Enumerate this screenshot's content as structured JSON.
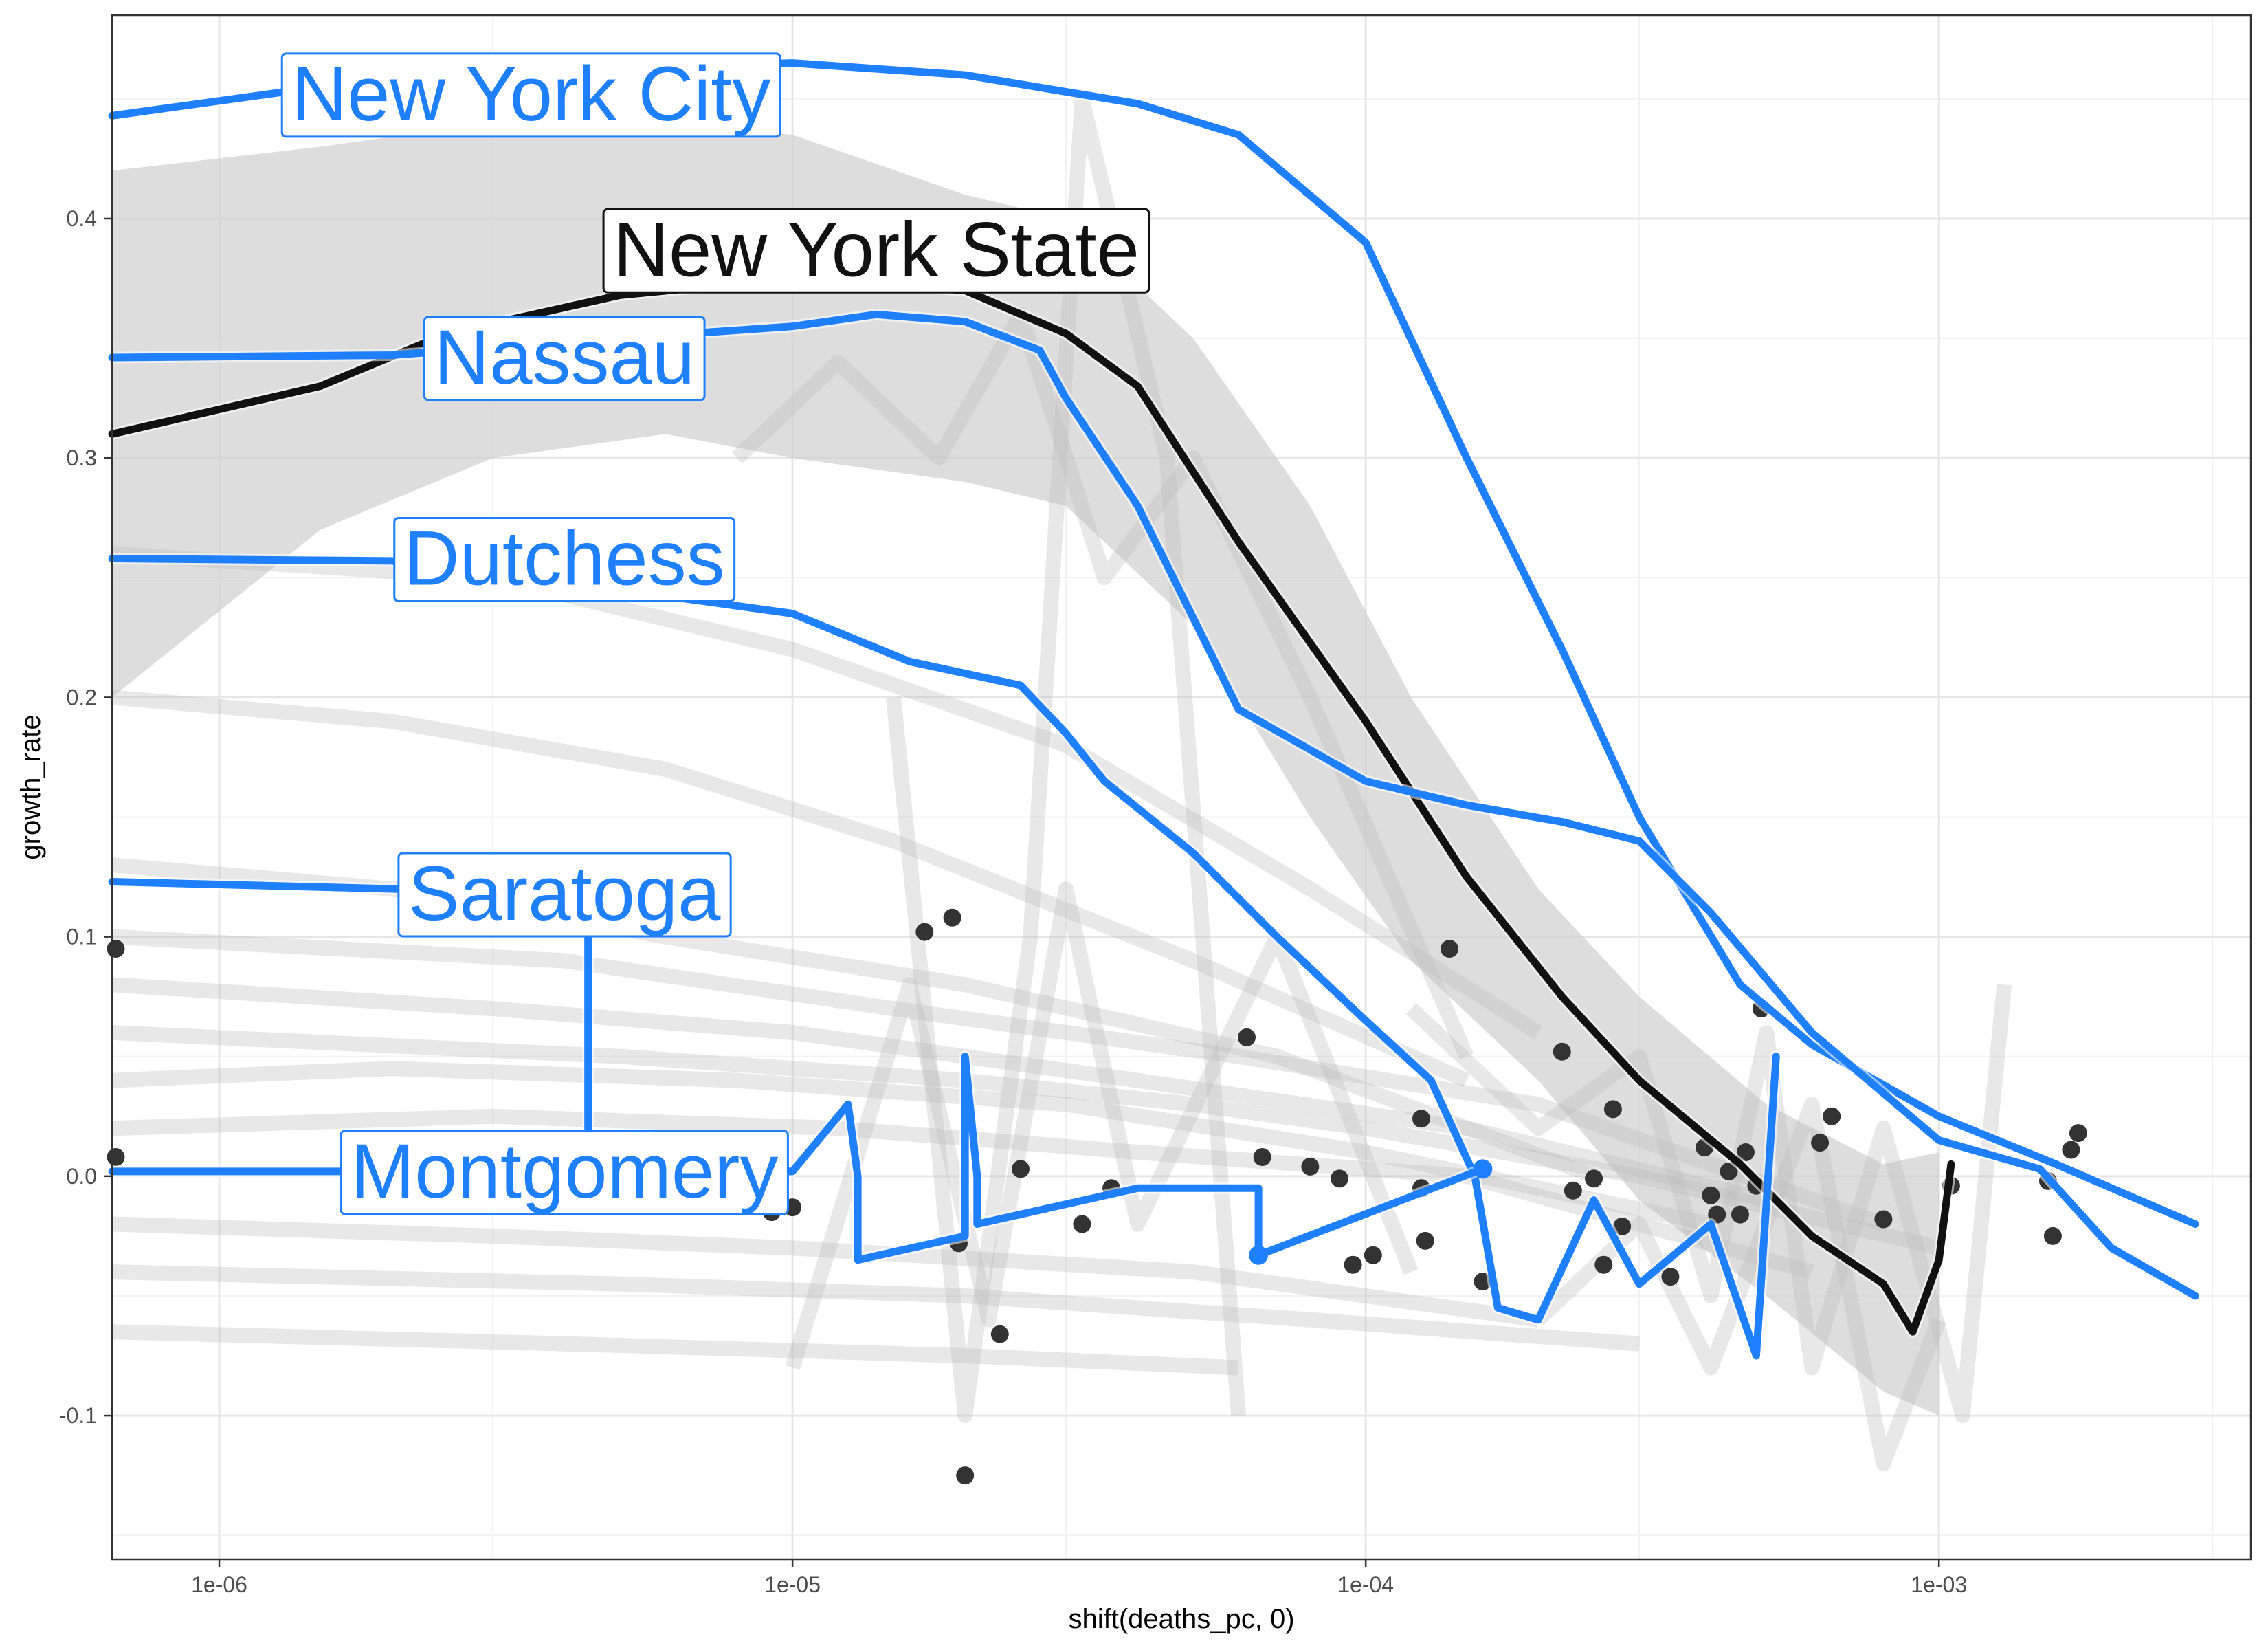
{
  "chart_data": {
    "type": "line",
    "xlabel": "shift(deaths_pc, 0)",
    "ylabel": "growth_rate",
    "x_scale": "log10",
    "xlim": [
      6.5e-07,
      0.0035
    ],
    "ylim": [
      -0.16,
      0.485
    ],
    "x_ticks": [
      {
        "value": 1e-06,
        "label": "1e-06"
      },
      {
        "value": 1e-05,
        "label": "1e-05"
      },
      {
        "value": 0.0001,
        "label": "1e-04"
      },
      {
        "value": 0.001,
        "label": "1e-03"
      }
    ],
    "y_ticks": [
      {
        "value": -0.1,
        "label": "-0.1"
      },
      {
        "value": 0.0,
        "label": "0.0"
      },
      {
        "value": 0.1,
        "label": "0.1"
      },
      {
        "value": 0.2,
        "label": "0.2"
      },
      {
        "value": 0.3,
        "label": "0.3"
      },
      {
        "value": 0.4,
        "label": "0.4"
      }
    ],
    "grid": true,
    "colors": {
      "highlight": "#1e7fff",
      "state": "#111111",
      "background_series": "#bdbdbd",
      "ribbon": "#cfcfcf",
      "points": "#333333"
    },
    "series": [
      {
        "name": "New York City",
        "color": "#1e7fff",
        "label_at": [
          3.5e-06,
          0.452
        ],
        "x": [
          6.5e-07,
          1.5e-06,
          4e-06,
          1e-05,
          2e-05,
          4e-05,
          6e-05,
          0.0001,
          0.00015,
          0.00022,
          0.0003,
          0.00045,
          0.0006,
          0.001,
          0.0016,
          0.0028
        ],
        "y": [
          0.443,
          0.455,
          0.462,
          0.465,
          0.46,
          0.448,
          0.435,
          0.39,
          0.3,
          0.22,
          0.15,
          0.08,
          0.055,
          0.025,
          0.005,
          -0.02
        ]
      },
      {
        "name": "New York State",
        "color": "#111111",
        "label_at": [
          1.4e-05,
          0.387
        ],
        "x": [
          6.5e-07,
          1.5e-06,
          2.5e-06,
          5e-06,
          1e-05,
          2e-05,
          3e-05,
          4e-05,
          6e-05,
          0.0001,
          0.00015,
          0.00022,
          0.0003,
          0.00045,
          0.0006,
          0.0008,
          0.0009,
          0.001,
          0.00105
        ],
        "y": [
          0.31,
          0.33,
          0.352,
          0.368,
          0.375,
          0.37,
          0.352,
          0.33,
          0.265,
          0.19,
          0.125,
          0.075,
          0.04,
          0.005,
          -0.025,
          -0.045,
          -0.065,
          -0.035,
          0.005
        ]
      },
      {
        "name": "Nassau",
        "color": "#1e7fff",
        "label_at": [
          4e-06,
          0.342
        ],
        "x": [
          6.5e-07,
          2e-06,
          5e-06,
          1e-05,
          1.4e-05,
          2e-05,
          2.7e-05,
          3e-05,
          4e-05,
          6e-05,
          0.0001,
          0.00015,
          0.00022,
          0.0003,
          0.0004,
          0.0006,
          0.001,
          0.0015,
          0.002,
          0.0028
        ],
        "y": [
          0.342,
          0.343,
          0.35,
          0.355,
          0.36,
          0.357,
          0.345,
          0.325,
          0.28,
          0.195,
          0.165,
          0.155,
          0.148,
          0.14,
          0.11,
          0.06,
          0.015,
          0.003,
          -0.03,
          -0.05
        ]
      },
      {
        "name": "Dutchess",
        "color": "#1e7fff",
        "label_at": [
          4e-06,
          0.258
        ],
        "x": [
          6.5e-07,
          2e-06,
          5e-06,
          1e-05,
          1.6e-05,
          2.5e-05,
          3e-05,
          3.5e-05,
          5e-05,
          7e-05,
          0.0001,
          0.00013,
          0.000155,
          0.00017,
          0.0002,
          0.00025,
          0.0003,
          0.0004,
          0.00048,
          0.00052
        ],
        "y": [
          0.258,
          0.257,
          0.245,
          0.235,
          0.215,
          0.205,
          0.185,
          0.165,
          0.135,
          0.1,
          0.065,
          0.04,
          0.0,
          -0.055,
          -0.06,
          -0.01,
          -0.045,
          -0.02,
          -0.075,
          0.05
        ]
      },
      {
        "name": "Saratoga",
        "color": "#1e7fff",
        "label_at": [
          4e-06,
          0.118
        ],
        "x": [
          6.5e-07,
          2e-06,
          4.4e-06,
          4.4e-06
        ],
        "y": [
          0.123,
          0.12,
          0.118,
          0.02
        ]
      },
      {
        "name": "Montgomery",
        "color": "#1e7fff",
        "label_at": [
          4e-06,
          0.002
        ],
        "x": [
          6.5e-07,
          1e-05,
          1.25e-05,
          1.3e-05,
          1.3e-05,
          2e-05,
          2e-05,
          2.1e-05,
          2.1e-05,
          4e-05,
          6.5e-05,
          6.5e-05,
          0.00016
        ],
        "y": [
          0.002,
          0.002,
          0.03,
          0.0,
          -0.035,
          -0.025,
          0.05,
          0.0,
          -0.02,
          -0.005,
          -0.005,
          -0.033,
          0.003
        ]
      }
    ],
    "ribbon": {
      "x": [
        6.5e-07,
        1.5e-06,
        3e-06,
        6e-06,
        1e-05,
        2e-05,
        3e-05,
        5e-05,
        8e-05,
        0.00012,
        0.0002,
        0.0003,
        0.0005,
        0.0008,
        0.001
      ],
      "y_upper": [
        0.42,
        0.43,
        0.44,
        0.44,
        0.435,
        0.41,
        0.4,
        0.35,
        0.28,
        0.2,
        0.12,
        0.075,
        0.03,
        0.005,
        0.01
      ],
      "y_lower": [
        0.2,
        0.27,
        0.3,
        0.31,
        0.3,
        0.29,
        0.28,
        0.23,
        0.15,
        0.09,
        0.04,
        -0.01,
        -0.05,
        -0.09,
        -0.1
      ]
    },
    "points": [
      {
        "x": 6.6e-07,
        "y": 0.095
      },
      {
        "x": 6.6e-07,
        "y": 0.008
      },
      {
        "x": 9.2e-06,
        "y": -0.015
      },
      {
        "x": 1e-05,
        "y": -0.013
      },
      {
        "x": 1.7e-05,
        "y": 0.102
      },
      {
        "x": 1.9e-05,
        "y": 0.108
      },
      {
        "x": 1.95e-05,
        "y": -0.028
      },
      {
        "x": 2e-05,
        "y": -0.125
      },
      {
        "x": 2.3e-05,
        "y": -0.066
      },
      {
        "x": 2.5e-05,
        "y": 0.003
      },
      {
        "x": 3.2e-05,
        "y": -0.02
      },
      {
        "x": 3.6e-05,
        "y": -0.005
      },
      {
        "x": 6.2e-05,
        "y": 0.058
      },
      {
        "x": 6.6e-05,
        "y": 0.008
      },
      {
        "x": 8e-05,
        "y": 0.004
      },
      {
        "x": 9e-05,
        "y": -0.001
      },
      {
        "x": 9.5e-05,
        "y": -0.037
      },
      {
        "x": 0.000103,
        "y": -0.033
      },
      {
        "x": 0.000125,
        "y": 0.024
      },
      {
        "x": 0.000125,
        "y": -0.005
      },
      {
        "x": 0.000127,
        "y": -0.027
      },
      {
        "x": 0.00014,
        "y": 0.095
      },
      {
        "x": 0.00016,
        "y": -0.044
      },
      {
        "x": 0.00022,
        "y": 0.052
      },
      {
        "x": 0.00023,
        "y": -0.006
      },
      {
        "x": 0.00025,
        "y": -0.001
      },
      {
        "x": 0.00026,
        "y": -0.037
      },
      {
        "x": 0.00027,
        "y": 0.028
      },
      {
        "x": 0.00028,
        "y": -0.021
      },
      {
        "x": 0.00034,
        "y": -0.042
      },
      {
        "x": 0.00039,
        "y": 0.012
      },
      {
        "x": 0.0004,
        "y": -0.008
      },
      {
        "x": 0.00041,
        "y": -0.016
      },
      {
        "x": 0.00043,
        "y": 0.002
      },
      {
        "x": 0.00045,
        "y": -0.016
      },
      {
        "x": 0.00046,
        "y": 0.01
      },
      {
        "x": 0.00048,
        "y": -0.004
      },
      {
        "x": 0.00049,
        "y": 0.07
      },
      {
        "x": 0.00062,
        "y": 0.014
      },
      {
        "x": 0.00065,
        "y": 0.025
      },
      {
        "x": 0.0008,
        "y": -0.018
      },
      {
        "x": 0.00105,
        "y": -0.004
      },
      {
        "x": 0.00155,
        "y": -0.002
      },
      {
        "x": 0.00158,
        "y": -0.025
      },
      {
        "x": 0.0017,
        "y": 0.011
      },
      {
        "x": 0.00175,
        "y": 0.018
      }
    ],
    "background_series": [
      {
        "x": [
          6.5e-07,
          5e-06,
          2e-05,
          5e-05,
          0.0001,
          0.0003,
          0.001
        ],
        "y": [
          0.06,
          0.05,
          0.04,
          0.03,
          0.02,
          0.0,
          -0.03
        ]
      },
      {
        "x": [
          6.5e-07,
          3e-06,
          1e-05,
          4e-05,
          0.00015,
          0.0005
        ],
        "y": [
          0.08,
          0.07,
          0.06,
          0.04,
          0.02,
          -0.01
        ]
      },
      {
        "x": [
          6.5e-07,
          2e-06,
          8e-06,
          3e-05,
          0.0001,
          0.0004
        ],
        "y": [
          0.04,
          0.045,
          0.04,
          0.03,
          0.01,
          -0.02
        ]
      },
      {
        "x": [
          6.5e-07,
          4e-06,
          1.5e-05,
          6e-05,
          0.0002,
          0.0008
        ],
        "y": [
          0.1,
          0.09,
          0.07,
          0.05,
          0.03,
          -0.02
        ]
      },
      {
        "x": [
          6.5e-07,
          3e-06,
          1e-05,
          5e-05,
          0.0002
        ],
        "y": [
          -0.02,
          -0.025,
          -0.03,
          -0.04,
          -0.06
        ]
      },
      {
        "x": [
          6.5e-07,
          5e-06,
          2e-05,
          8e-05,
          0.0003
        ],
        "y": [
          -0.04,
          -0.045,
          -0.05,
          -0.06,
          -0.07
        ]
      },
      {
        "x": [
          6.5e-07,
          4e-06,
          2e-05,
          6e-05
        ],
        "y": [
          -0.065,
          -0.07,
          -0.075,
          -0.08
        ]
      },
      {
        "x": [
          6.5e-07,
          3e-06,
          1.2e-05,
          4e-05,
          0.00015,
          0.0006
        ],
        "y": [
          0.02,
          0.025,
          0.02,
          0.01,
          0.0,
          -0.04
        ]
      },
      {
        "x": [
          6.5e-07,
          2e-06,
          6e-06,
          2e-05,
          7e-05,
          0.00025
        ],
        "y": [
          0.13,
          0.12,
          0.1,
          0.08,
          0.05,
          0.0
        ]
      },
      {
        "x": [
          6.5e-07,
          2e-06,
          6e-06,
          1.5e-05,
          5e-05,
          0.00015
        ],
        "y": [
          0.2,
          0.19,
          0.17,
          0.14,
          0.09,
          0.04
        ]
      },
      {
        "x": [
          6.5e-07,
          3e-06,
          1e-05,
          3e-05,
          8e-05,
          0.0002
        ],
        "y": [
          0.26,
          0.25,
          0.22,
          0.18,
          0.12,
          0.06
        ]
      },
      {
        "x": [
          8e-06,
          1.2e-05,
          1.8e-05,
          2.5e-05,
          3.5e-05,
          5e-05,
          8e-05,
          0.00015
        ],
        "y": [
          0.3,
          0.34,
          0.3,
          0.36,
          0.25,
          0.3,
          0.2,
          0.05
        ]
      },
      {
        "x": [
          1e-05,
          1.6e-05,
          2.2e-05,
          3e-05,
          4e-05,
          7e-05,
          0.00012
        ],
        "y": [
          -0.08,
          0.08,
          -0.06,
          0.12,
          -0.02,
          0.1,
          -0.04
        ]
      },
      {
        "x": [
          1.5e-05,
          2e-05,
          2.6e-05,
          3.2e-05,
          4.5e-05,
          6e-05
        ],
        "y": [
          0.2,
          -0.1,
          0.1,
          0.45,
          0.3,
          -0.1
        ]
      },
      {
        "x": [
          0.00012,
          0.0002,
          0.0003,
          0.0004,
          0.0005,
          0.0006,
          0.0008,
          0.0011,
          0.0013
        ],
        "y": [
          0.07,
          0.02,
          0.05,
          -0.05,
          0.06,
          -0.08,
          0.02,
          -0.1,
          0.08
        ]
      },
      {
        "x": [
          0.0002,
          0.0003,
          0.0004,
          0.0006,
          0.0008,
          0.001
        ],
        "y": [
          -0.06,
          -0.02,
          -0.08,
          0.03,
          -0.12,
          -0.06
        ]
      }
    ]
  }
}
